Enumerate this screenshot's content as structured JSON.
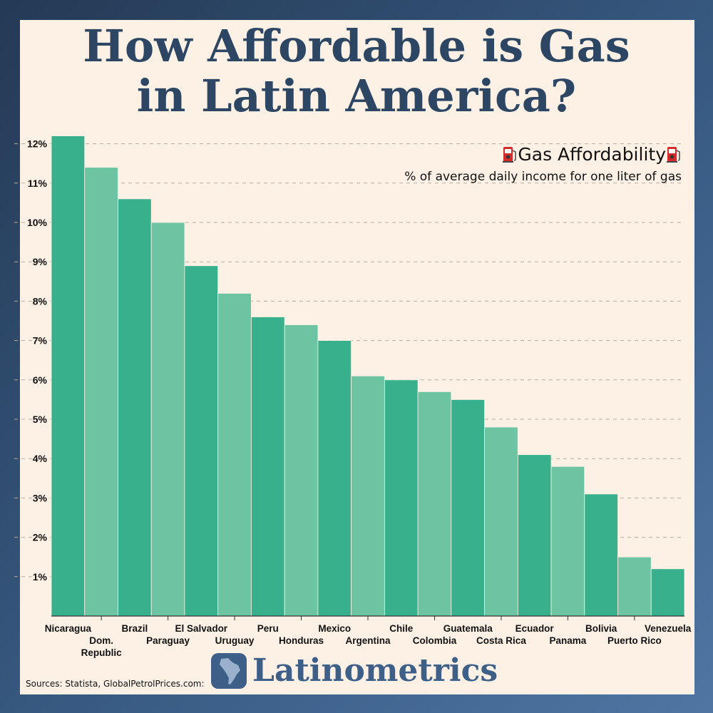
{
  "title_line1": "How Affordable is Gas",
  "title_line2": "in Latin America?",
  "legend_title": "Gas Affordability",
  "legend_subtitle": "% of average daily income for one liter of gas",
  "logo_text": "Latinometrics",
  "sources": "Sources: Statista, GlobalPetrolPrices.com:",
  "icons": {
    "pump": "fuel-pump-icon",
    "logo": "latin-america-map-icon"
  },
  "colors": {
    "bar_dark": "#38b08b",
    "bar_light": "#6cc4a3",
    "title": "#2c4663",
    "background": "#fdf1e6"
  },
  "chart_data": {
    "type": "bar",
    "categories": [
      "Nicaragua",
      "Dom. Republic",
      "Brazil",
      "Paraguay",
      "El Salvador",
      "Uruguay",
      "Peru",
      "Honduras",
      "Mexico",
      "Argentina",
      "Chile",
      "Colombia",
      "Guatemala",
      "Costa Rica",
      "Ecuador",
      "Panama",
      "Bolivia",
      "Puerto Rico",
      "Venezuela"
    ],
    "values": [
      12.2,
      11.4,
      10.6,
      10.0,
      8.9,
      8.2,
      7.6,
      7.4,
      7.0,
      6.1,
      6.0,
      5.7,
      5.5,
      4.8,
      4.1,
      3.8,
      3.1,
      1.5,
      1.2
    ],
    "y_ticks": [
      "1%",
      "2%",
      "3%",
      "4%",
      "5%",
      "6%",
      "7%",
      "8%",
      "9%",
      "10%",
      "11%",
      "12%"
    ],
    "ylim": [
      0,
      12.5
    ],
    "grid": true
  }
}
